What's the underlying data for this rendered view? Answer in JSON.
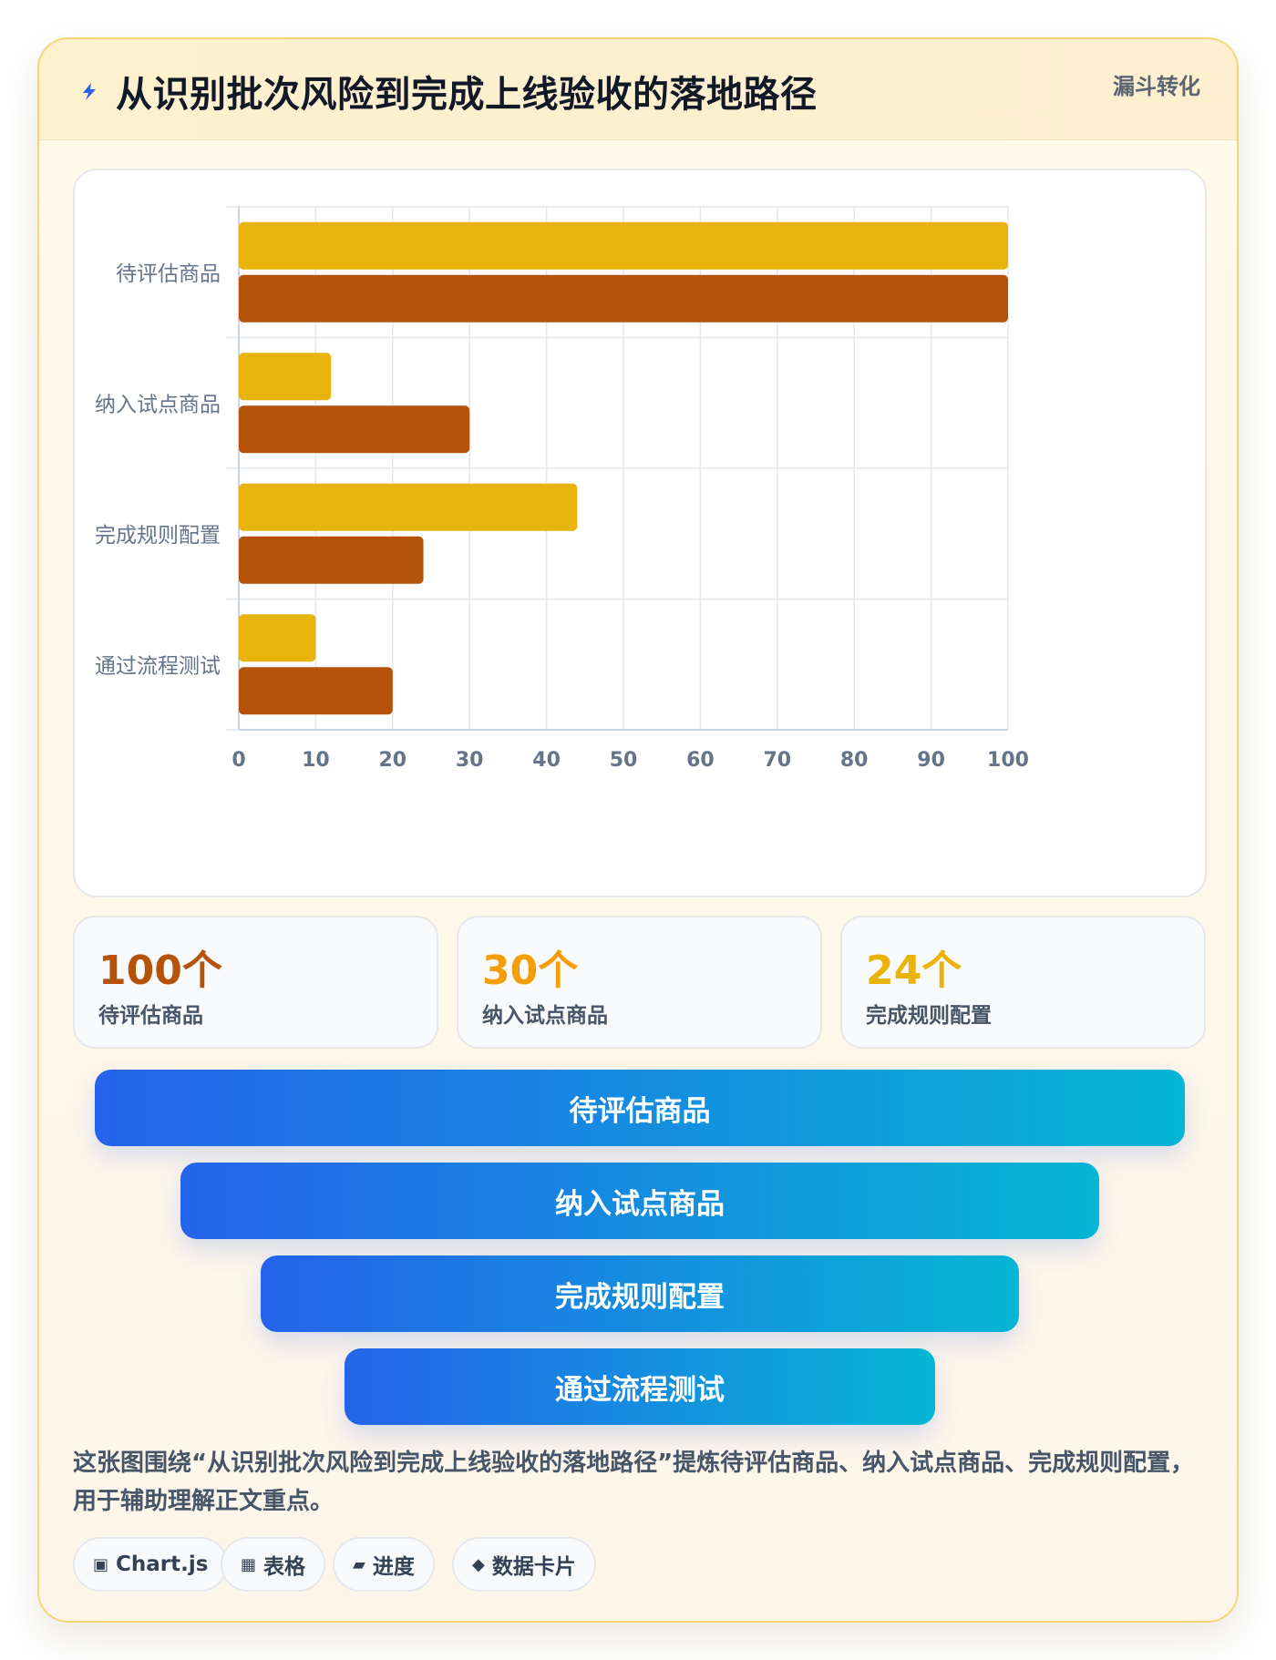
{
  "header": {
    "title": "从识别批次风险到完成上线验收的落地路径",
    "badge": "漏斗转化",
    "icon": "lightning-icon"
  },
  "chart_data": {
    "type": "bar",
    "orientation": "horizontal",
    "categories": [
      "待评估商品",
      "纳入试点商品",
      "完成规则配置",
      "通过流程测试"
    ],
    "series": [
      {
        "values": [
          100,
          12,
          44,
          10
        ],
        "color": "#e8b30b"
      },
      {
        "values": [
          100,
          30,
          24,
          20
        ],
        "color": "#b5530b"
      }
    ],
    "xlim": [
      0,
      100
    ],
    "xticks": [
      0,
      10,
      20,
      30,
      40,
      50,
      60,
      70,
      80,
      90,
      100
    ],
    "grid": true,
    "legend": "none"
  },
  "stats": [
    {
      "value": "100个",
      "label": "待评估商品",
      "color": "#b5530b"
    },
    {
      "value": "30个",
      "label": "纳入试点商品",
      "color": "#f59e0b"
    },
    {
      "value": "24个",
      "label": "完成规则配置",
      "color": "#eab308"
    }
  ],
  "funnel": [
    {
      "label": "待评估商品"
    },
    {
      "label": "纳入试点商品"
    },
    {
      "label": "完成规则配置"
    },
    {
      "label": "通过流程测试"
    }
  ],
  "summary": "这张图围绕“从识别批次风险到完成上线验收的落地路径”提炼待评估商品、纳入试点商品、完成规则配置，用于辅助理解正文重点。",
  "tags": [
    {
      "icon": "▣",
      "icon_name": "chart-icon",
      "label": "Chart.js"
    },
    {
      "icon": "▦",
      "icon_name": "table-icon",
      "label": "表格"
    },
    {
      "icon": "▰",
      "icon_name": "progress-icon",
      "label": "进度"
    },
    {
      "icon": "◆",
      "icon_name": "data-card-icon",
      "label": "数据卡片"
    }
  ]
}
